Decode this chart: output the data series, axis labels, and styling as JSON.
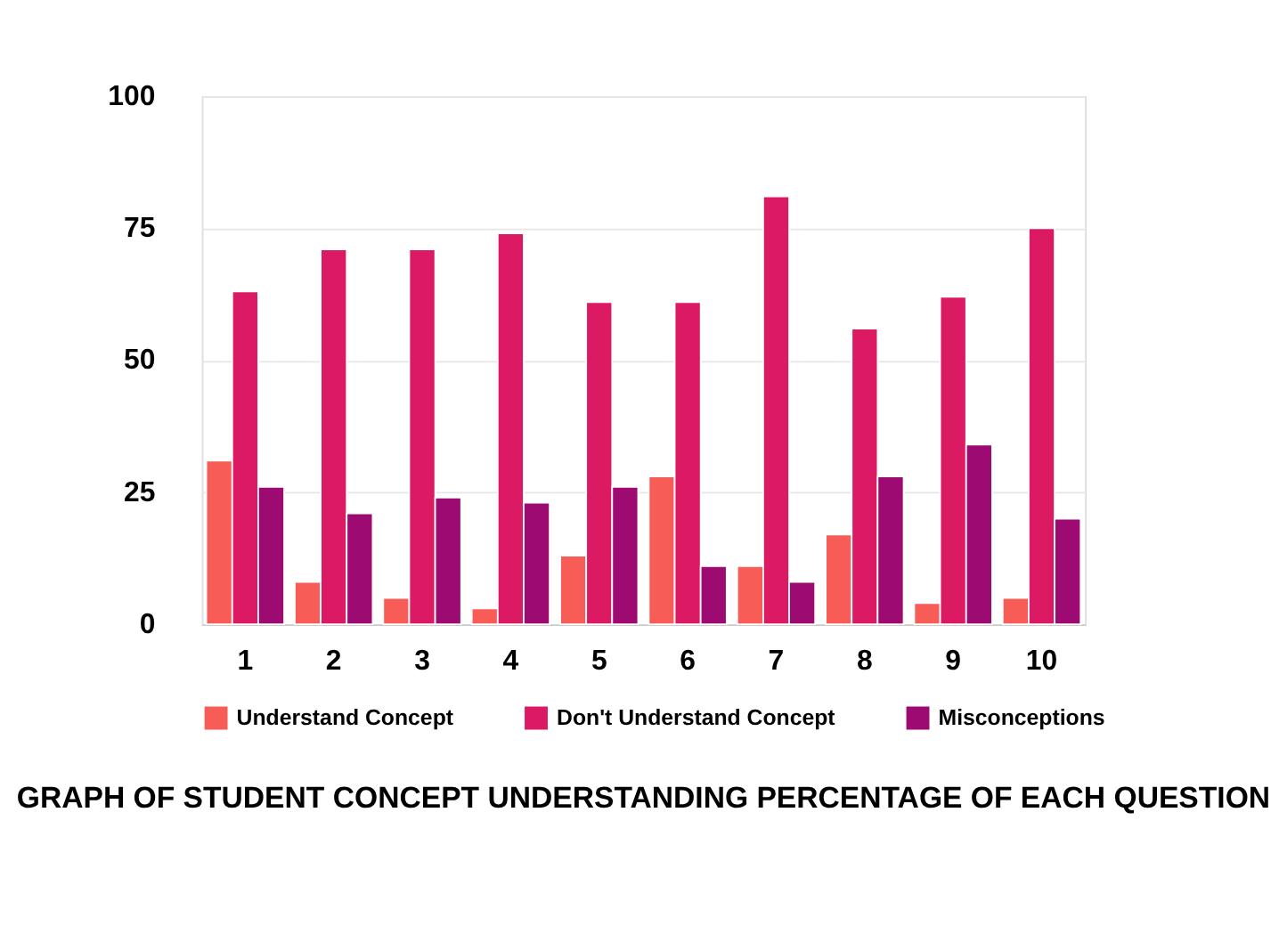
{
  "chart_data": {
    "type": "bar",
    "title": "GRAPH OF STUDENT CONCEPT UNDERSTANDING PERCENTAGE OF EACH QUESTION",
    "categories": [
      "1",
      "2",
      "3",
      "4",
      "5",
      "6",
      "7",
      "8",
      "9",
      "10"
    ],
    "series": [
      {
        "name": "Understand Concept",
        "color": "#f75c57",
        "values": [
          31,
          8,
          5,
          3,
          13,
          28,
          11,
          17,
          4,
          5
        ]
      },
      {
        "name": "Don't Understand Concept",
        "color": "#dc1a63",
        "values": [
          63,
          71,
          71,
          74,
          61,
          61,
          81,
          56,
          62,
          75
        ]
      },
      {
        "name": "Misconceptions",
        "color": "#9c0a72",
        "values": [
          26,
          21,
          24,
          23,
          26,
          11,
          8,
          28,
          34,
          20
        ]
      }
    ],
    "ylim": [
      0,
      100
    ],
    "yticks": [
      0,
      25,
      50,
      75,
      100
    ],
    "grid": "y",
    "legend": "bottom"
  }
}
